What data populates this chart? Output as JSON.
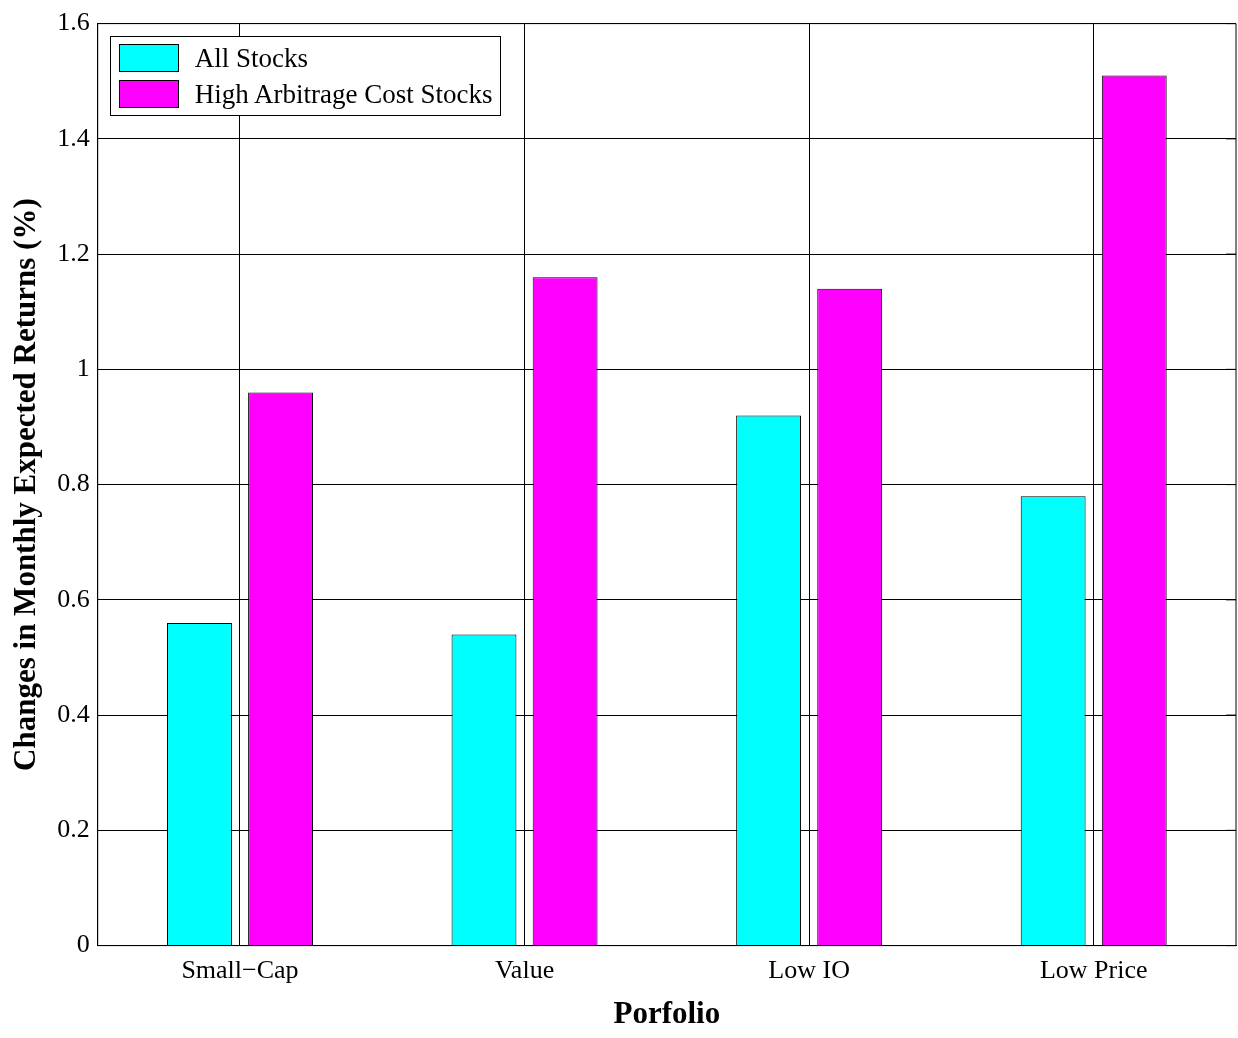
{
  "chart_data": {
    "type": "bar",
    "xlabel": "Porfolio",
    "ylabel": "Changes in Monthly Expected Returns (%)",
    "categories": [
      "Small−Cap",
      "Value",
      "Low IO",
      "Low Price"
    ],
    "series": [
      {
        "name": "All Stocks",
        "color": "#00ffff",
        "values": [
          0.56,
          0.54,
          0.92,
          0.78
        ]
      },
      {
        "name": "High Arbitrage Cost Stocks",
        "color": "#ff00ff",
        "values": [
          0.96,
          1.16,
          1.14,
          1.51
        ]
      }
    ],
    "ylim": [
      0,
      1.6
    ],
    "yticks": [
      0,
      0.2,
      0.4,
      0.6,
      0.8,
      1,
      1.2,
      1.4,
      1.6
    ],
    "grid": true,
    "legend": "top left"
  }
}
